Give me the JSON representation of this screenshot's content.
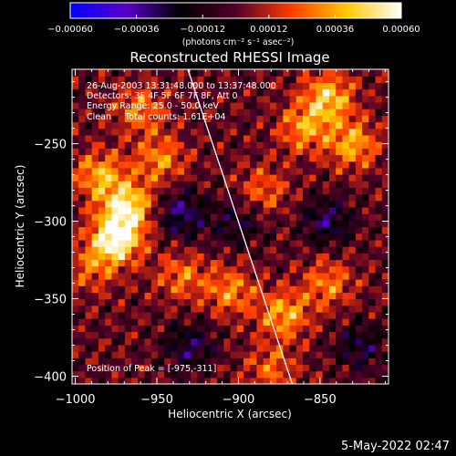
{
  "chart_data": {
    "type": "heatmap",
    "title": "Reconstructed RHESSI Image",
    "xlabel": "Heliocentric X (arcsec)",
    "ylabel": "Heliocentric Y (arcsec)",
    "xlim": [
      -1002,
      -808
    ],
    "ylim": [
      -405,
      -202
    ],
    "x_ticks": [
      -1000,
      -950,
      -900,
      -850
    ],
    "x_tick_labels": [
      "−1000",
      "−950",
      "−900",
      "−850"
    ],
    "y_ticks": [
      -250,
      -300,
      -350,
      -400
    ],
    "y_tick_labels": [
      "−250",
      "−300",
      "−350",
      "−400"
    ],
    "colorbar": {
      "min": -0.0006,
      "max": 0.0006,
      "ticks": [
        -0.0006,
        -0.00036,
        -0.00012,
        0.00012,
        0.00036,
        0.0006
      ],
      "tick_labels": [
        "−0.00060",
        "−0.00036",
        "−0.00012",
        "0.00012",
        "0.00036",
        "0.00060"
      ],
      "unit_label": "(photons cm⁻² s⁻¹ asec⁻²)",
      "colors": [
        "#0000ff",
        "#5a00c8",
        "#000000",
        "#500028",
        "#ff3a00",
        "#ffc800",
        "#ffffff"
      ]
    },
    "annotations": [
      "26-Aug-2003 13:31:48.000 to 13:37:48.000",
      "Detectors: 3F 4F 5F 6F 7F 8F, Att 0",
      "Energy Range: 25.0 - 50.0 keV",
      "Clean     Total counts: 1.61E+04",
      "Position of Peak = [-975,-311]"
    ],
    "peak": [
      -975,
      -311
    ],
    "limb_line": [
      [
        -931,
        -202
      ],
      [
        -867,
        -405
      ]
    ],
    "sources": [
      {
        "x": -975,
        "y": -311,
        "v": 0.0006
      },
      {
        "x": -968,
        "y": -290,
        "v": 0.00048
      },
      {
        "x": -985,
        "y": -270,
        "v": 0.00036
      },
      {
        "x": -948,
        "y": -260,
        "v": 0.0003
      },
      {
        "x": -960,
        "y": -228,
        "v": 0.00028
      },
      {
        "x": -845,
        "y": -220,
        "v": 0.00042
      },
      {
        "x": -830,
        "y": -250,
        "v": 0.00036
      },
      {
        "x": -860,
        "y": -240,
        "v": 0.00032
      },
      {
        "x": -885,
        "y": -280,
        "v": 0.00024
      },
      {
        "x": -905,
        "y": -345,
        "v": 0.0003
      },
      {
        "x": -872,
        "y": -360,
        "v": 0.00036
      },
      {
        "x": -845,
        "y": -340,
        "v": 0.00028
      },
      {
        "x": -935,
        "y": -335,
        "v": 0.00026
      },
      {
        "x": -990,
        "y": -330,
        "v": 0.00022
      },
      {
        "x": -880,
        "y": -395,
        "v": 0.00024
      },
      {
        "x": -935,
        "y": -295,
        "v": -0.0003
      },
      {
        "x": -930,
        "y": -380,
        "v": -0.00024
      },
      {
        "x": -845,
        "y": -300,
        "v": -0.00026
      },
      {
        "x": -825,
        "y": -380,
        "v": -0.00022
      },
      {
        "x": -900,
        "y": -300,
        "v": -0.0002
      }
    ]
  },
  "timestamp": "5-May-2022 02:47"
}
